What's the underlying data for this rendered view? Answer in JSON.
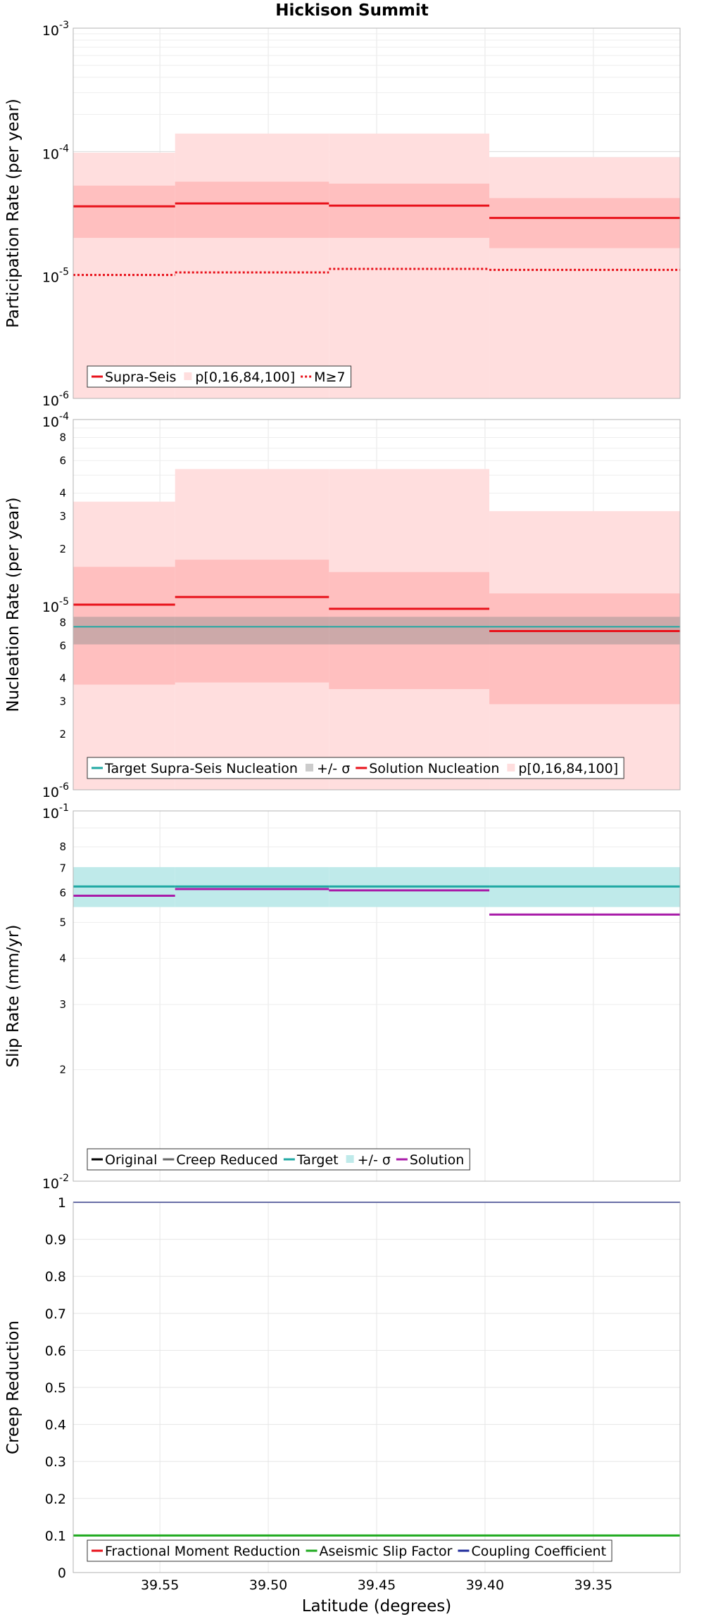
{
  "title": "Hickison Summit",
  "colors": {
    "red": "#e8111a",
    "pink_light": "#ffdede",
    "pink_mid": "#ffbfbf",
    "teal": "#1fa8a3",
    "teal_band": "#bfeaea",
    "gray_band": "#8f8f8f",
    "purple": "#a81aa8",
    "green": "#1faa1f",
    "navy": "#1e2a9a",
    "black": "#000000",
    "gray": "#666666"
  },
  "chart_data": [
    {
      "type": "line",
      "name": "participation",
      "ylabel": "Participation Rate (per year)",
      "yscale": "log",
      "ylim": [
        1e-06,
        0.001
      ],
      "xlim": [
        39.59,
        39.31
      ],
      "major_ticks": [
        {
          "v": 1e-06,
          "mant": "10",
          "exp": "-6"
        },
        {
          "v": 1e-05,
          "mant": "10",
          "exp": "-5"
        },
        {
          "v": 0.0001,
          "mant": "10",
          "exp": "-4"
        },
        {
          "v": 0.001,
          "mant": "10",
          "exp": "-3"
        }
      ],
      "minor_ticks": [],
      "segments": [
        [
          39.59,
          39.543
        ],
        [
          39.543,
          39.472
        ],
        [
          39.472,
          39.398
        ],
        [
          39.398,
          39.31
        ]
      ],
      "bands": [
        {
          "fill": "pink_light",
          "low": [
            1e-06,
            1e-06,
            1e-06,
            1e-06
          ],
          "high": [
            9.8e-05,
            0.00014,
            0.00014,
            9e-05
          ]
        },
        {
          "fill": "pink_mid",
          "low": [
            2e-05,
            2e-05,
            2e-05,
            1.65e-05
          ],
          "high": [
            5.3e-05,
            5.7e-05,
            5.5e-05,
            4.2e-05
          ]
        }
      ],
      "lines": [
        {
          "name": "Supra-Seis",
          "color": "red",
          "dash": "",
          "width": 3,
          "values": [
            3.6e-05,
            3.8e-05,
            3.65e-05,
            2.9e-05
          ]
        },
        {
          "name": "M≥7",
          "color": "red",
          "dash": "3,3",
          "width": 3,
          "values": [
            1e-05,
            1.05e-05,
            1.12e-05,
            1.1e-05
          ]
        }
      ],
      "legend": [
        {
          "label": "Supra-Seis",
          "kind": "line",
          "color": "red",
          "dash": ""
        },
        {
          "label": "p[0,16,84,100]",
          "kind": "box",
          "color": "pink_light"
        },
        {
          "label": "M≥7",
          "kind": "line",
          "color": "red",
          "dash": "3,3"
        }
      ]
    },
    {
      "type": "line",
      "name": "nucleation",
      "ylabel": "Nucleation Rate (per year)",
      "yscale": "log",
      "ylim": [
        1e-06,
        0.0001
      ],
      "xlim": [
        39.59,
        39.31
      ],
      "major_ticks": [
        {
          "v": 1e-06,
          "mant": "10",
          "exp": "-6"
        },
        {
          "v": 1e-05,
          "mant": "10",
          "exp": "-5"
        },
        {
          "v": 0.0001,
          "mant": "10",
          "exp": "-4"
        }
      ],
      "minor_ticks": [
        {
          "v": 2e-06,
          "label": "2"
        },
        {
          "v": 3e-06,
          "label": "3"
        },
        {
          "v": 4e-06,
          "label": "4"
        },
        {
          "v": 6e-06,
          "label": "6"
        },
        {
          "v": 8e-06,
          "label": "8"
        },
        {
          "v": 2e-05,
          "label": "2"
        },
        {
          "v": 3e-05,
          "label": "3"
        },
        {
          "v": 4e-05,
          "label": "4"
        },
        {
          "v": 6e-05,
          "label": "6"
        },
        {
          "v": 8e-05,
          "label": "8"
        }
      ],
      "segments": [
        [
          39.59,
          39.543
        ],
        [
          39.543,
          39.472
        ],
        [
          39.472,
          39.398
        ],
        [
          39.398,
          39.31
        ]
      ],
      "bands": [
        {
          "fill": "pink_light",
          "low": [
            1e-06,
            1e-06,
            1e-06,
            1e-06
          ],
          "high": [
            3.6e-05,
            5.4e-05,
            5.4e-05,
            3.2e-05
          ]
        },
        {
          "fill": "pink_mid",
          "low": [
            3.7e-06,
            3.8e-06,
            3.5e-06,
            2.9e-06
          ],
          "high": [
            1.6e-05,
            1.75e-05,
            1.5e-05,
            1.15e-05
          ]
        },
        {
          "fill": "gray_band",
          "opacity": 0.45,
          "low": [
            6.1e-06,
            6.1e-06,
            6.1e-06,
            6.1e-06
          ],
          "high": [
            8.6e-06,
            8.6e-06,
            8.6e-06,
            8.6e-06
          ]
        }
      ],
      "lines": [
        {
          "name": "Target Supra-Seis Nucleation",
          "color": "teal",
          "dash": "",
          "width": 2,
          "values": [
            7.6e-06,
            7.6e-06,
            7.6e-06,
            7.6e-06
          ]
        },
        {
          "name": "Solution Nucleation",
          "color": "red",
          "dash": "",
          "width": 3,
          "values": [
            1e-05,
            1.1e-05,
            9.5e-06,
            7.2e-06
          ]
        }
      ],
      "legend": [
        {
          "label": "Target Supra-Seis Nucleation",
          "kind": "line",
          "color": "teal",
          "dash": ""
        },
        {
          "label": "+/- σ",
          "kind": "box",
          "color": "gray_band"
        },
        {
          "label": "Solution Nucleation",
          "kind": "line",
          "color": "red",
          "dash": ""
        },
        {
          "label": "p[0,16,84,100]",
          "kind": "box",
          "color": "pink_light"
        }
      ]
    },
    {
      "type": "line",
      "name": "slip",
      "ylabel": "Slip Rate (mm/yr)",
      "yscale": "log",
      "ylim": [
        0.01,
        0.1
      ],
      "xlim": [
        39.59,
        39.31
      ],
      "major_ticks": [
        {
          "v": 0.01,
          "mant": "10",
          "exp": "-2"
        },
        {
          "v": 0.1,
          "mant": "10",
          "exp": "-1"
        }
      ],
      "minor_ticks": [
        {
          "v": 0.02,
          "label": "2"
        },
        {
          "v": 0.03,
          "label": "3"
        },
        {
          "v": 0.04,
          "label": "4"
        },
        {
          "v": 0.05,
          "label": "5"
        },
        {
          "v": 0.06,
          "label": "6"
        },
        {
          "v": 0.07,
          "label": "7"
        },
        {
          "v": 0.08,
          "label": "8"
        }
      ],
      "segments": [
        [
          39.59,
          39.543
        ],
        [
          39.543,
          39.472
        ],
        [
          39.472,
          39.398
        ],
        [
          39.398,
          39.31
        ]
      ],
      "bands": [
        {
          "fill": "teal_band",
          "low": [
            0.055,
            0.055,
            0.055,
            0.055
          ],
          "high": [
            0.0705,
            0.0705,
            0.0705,
            0.0705
          ]
        }
      ],
      "lines": [
        {
          "name": "Target",
          "color": "teal",
          "dash": "",
          "width": 3,
          "values": [
            0.0625,
            0.0625,
            0.0625,
            0.0625
          ]
        },
        {
          "name": "Solution",
          "color": "purple",
          "dash": "",
          "width": 3,
          "values": [
            0.059,
            0.0615,
            0.061,
            0.0525
          ],
          "mask": [
            true,
            true,
            true,
            true
          ]
        }
      ],
      "legend": [
        {
          "label": "Original",
          "kind": "line",
          "color": "black",
          "dash": ""
        },
        {
          "label": "Creep Reduced",
          "kind": "line",
          "color": "gray",
          "dash": ""
        },
        {
          "label": "Target",
          "kind": "line",
          "color": "teal",
          "dash": ""
        },
        {
          "label": "+/- σ",
          "kind": "box",
          "color": "teal_band"
        },
        {
          "label": "Solution",
          "kind": "line",
          "color": "purple",
          "dash": ""
        }
      ]
    },
    {
      "type": "line",
      "name": "creep",
      "ylabel": "Creep Reduction",
      "xlabel": "Latitude (degrees)",
      "yscale": "linear",
      "ylim": [
        0,
        1
      ],
      "xlim": [
        39.59,
        39.31
      ],
      "linear_ticks": [
        "0",
        "0.1",
        "0.2",
        "0.3",
        "0.4",
        "0.5",
        "0.6",
        "0.7",
        "0.8",
        "0.9",
        "1"
      ],
      "segments": [
        [
          39.59,
          39.31
        ]
      ],
      "bands": [],
      "lines": [
        {
          "name": "Coupling Coefficient",
          "color": "navy",
          "dash": "",
          "width": 2,
          "values": [
            1.0
          ]
        },
        {
          "name": "Aseismic Slip Factor",
          "color": "green",
          "dash": "",
          "width": 3,
          "values": [
            0.1
          ]
        }
      ],
      "xticks": [
        "39.55",
        "39.50",
        "39.45",
        "39.40",
        "39.35"
      ],
      "xtick_values": [
        39.55,
        39.5,
        39.45,
        39.4,
        39.35
      ],
      "legend": [
        {
          "label": "Fractional Moment Reduction",
          "kind": "line",
          "color": "red",
          "dash": ""
        },
        {
          "label": "Aseismic Slip Factor",
          "kind": "line",
          "color": "green",
          "dash": ""
        },
        {
          "label": "Coupling Coefficient",
          "kind": "line",
          "color": "navy",
          "dash": ""
        }
      ]
    }
  ]
}
